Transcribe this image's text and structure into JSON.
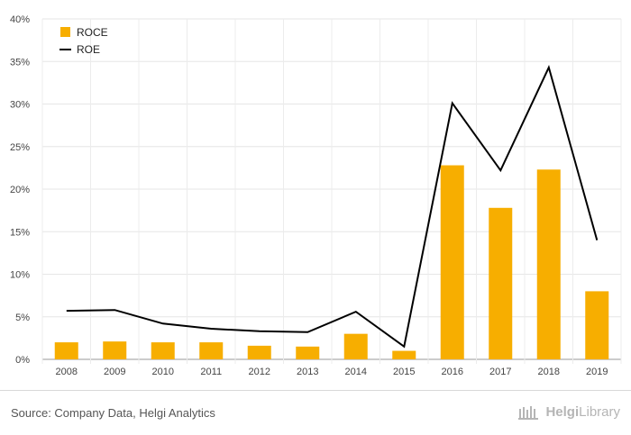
{
  "chart_data": {
    "type": "bar",
    "categories": [
      "2008",
      "2009",
      "2010",
      "2011",
      "2012",
      "2013",
      "2014",
      "2015",
      "2016",
      "2017",
      "2018",
      "2019"
    ],
    "series": [
      {
        "name": "ROCE",
        "type": "bar",
        "color": "#f7ae00",
        "values": [
          2.0,
          2.1,
          2.0,
          2.0,
          1.6,
          1.5,
          3.0,
          1.0,
          22.8,
          17.8,
          22.3,
          8.0
        ]
      },
      {
        "name": "ROE",
        "type": "line",
        "color": "#000000",
        "values": [
          5.7,
          5.8,
          4.2,
          3.6,
          3.3,
          3.2,
          5.6,
          1.5,
          30.1,
          22.2,
          34.3,
          14.0
        ]
      }
    ],
    "ylim": [
      0,
      40
    ],
    "yticks": [
      "0%",
      "5%",
      "10%",
      "15%",
      "20%",
      "25%",
      "30%",
      "35%",
      "40%"
    ],
    "grid": true,
    "legend_position": "top-left"
  },
  "footer": {
    "source": "Source: Company Data, Helgi Analytics",
    "logo_text_a": "Helgi",
    "logo_text_b": "Library"
  }
}
